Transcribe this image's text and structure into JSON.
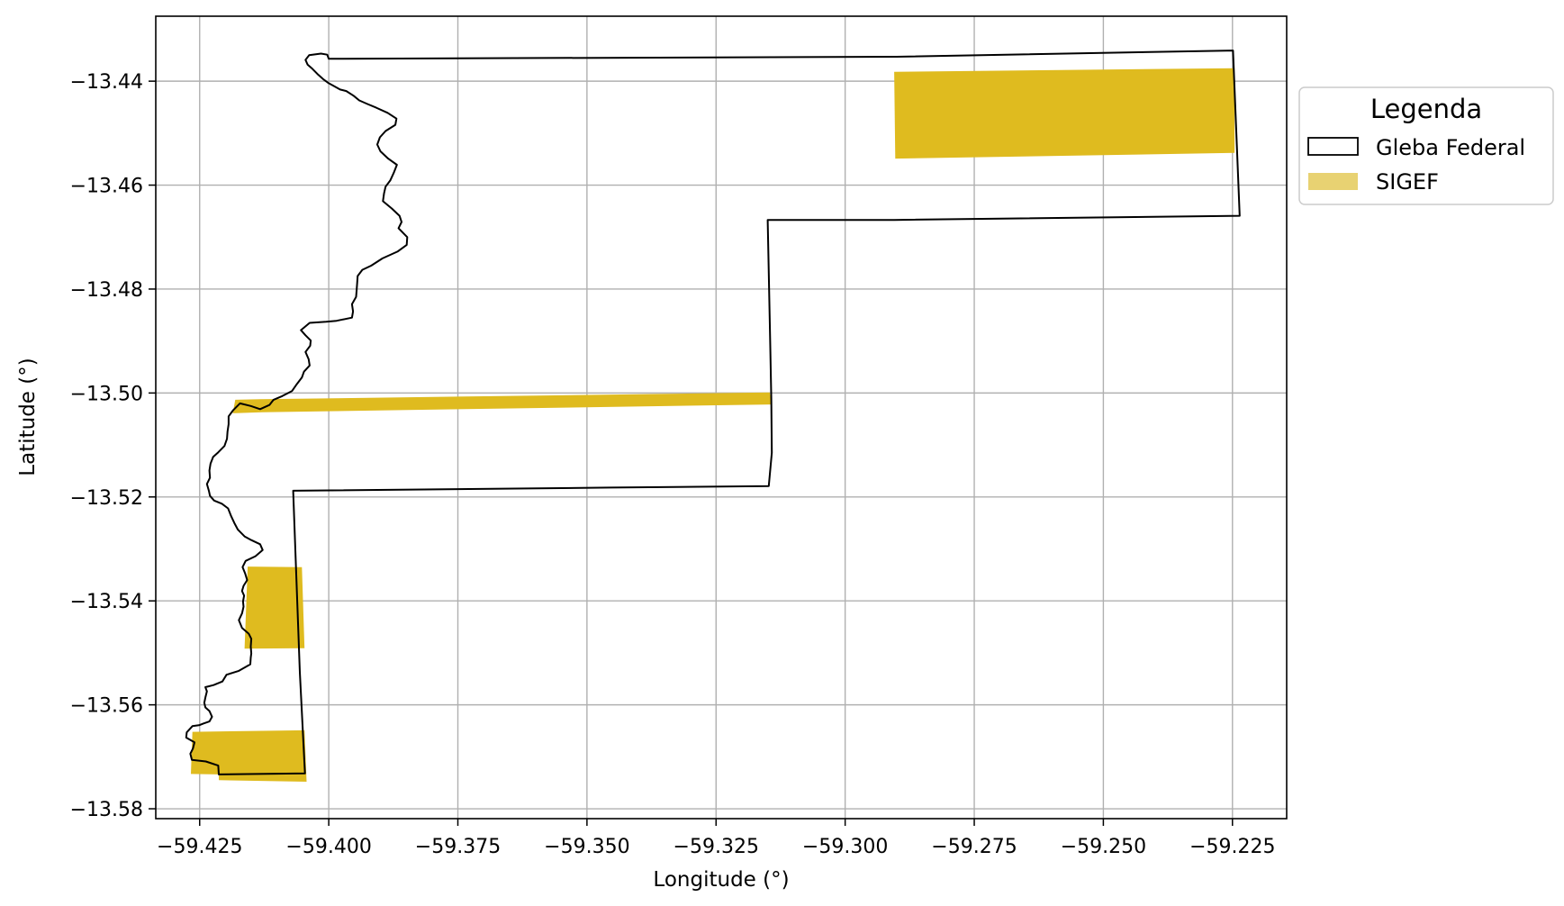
{
  "chart_data": {
    "type": "map",
    "xlabel": "Longitude (°)",
    "ylabel": "Latitude (°)",
    "xlim": [
      -59.4335,
      -59.2145
    ],
    "ylim": [
      -13.5819,
      -13.4275
    ],
    "xticks": [
      -59.425,
      -59.4,
      -59.375,
      -59.35,
      -59.325,
      -59.3,
      -59.275,
      -59.25,
      -59.225
    ],
    "xtick_labels": [
      "−59.425",
      "−59.400",
      "−59.375",
      "−59.350",
      "−59.325",
      "−59.300",
      "−59.275",
      "−59.250",
      "−59.225"
    ],
    "yticks": [
      -13.44,
      -13.46,
      -13.48,
      -13.5,
      -13.52,
      -13.54,
      -13.56,
      -13.58
    ],
    "ytick_labels": [
      "−13.44",
      "−13.46",
      "−13.48",
      "−13.50",
      "−13.52",
      "−13.54",
      "−13.56",
      "−13.58"
    ],
    "grid": true,
    "legend": {
      "title": "Legenda",
      "position": "outside-upper-right",
      "entries": [
        {
          "label": "Gleba Federal",
          "style": "outline",
          "edge_color": "#000000",
          "face_color": "#ffffff"
        },
        {
          "label": "SIGEF",
          "style": "fill",
          "face_color": "#e8d272"
        }
      ]
    },
    "colors": {
      "gleba_edge": "#000000",
      "sigef_fill": "#dfbb1f",
      "grid": "#b0b0b0"
    },
    "layers": [
      {
        "name": "Gleba Federal",
        "kind": "outline",
        "coordinates": [
          [
            -59.4,
            -13.4357
          ],
          [
            -59.29,
            -13.4353
          ],
          [
            -59.2249,
            -13.4341
          ],
          [
            -59.2236,
            -13.4659
          ],
          [
            -59.2905,
            -13.4667
          ],
          [
            -59.315,
            -13.4667
          ],
          [
            -59.3145,
            -13.4912
          ],
          [
            -59.3143,
            -13.5011
          ],
          [
            -59.3142,
            -13.5115
          ],
          [
            -59.3148,
            -13.5179
          ],
          [
            -59.3455,
            -13.5182
          ],
          [
            -59.4069,
            -13.5188
          ],
          [
            -59.4056,
            -13.5537
          ],
          [
            -59.4046,
            -13.5732
          ],
          [
            -59.4213,
            -13.5734
          ],
          [
            -59.4214,
            -13.5717
          ],
          [
            -59.4238,
            -13.5709
          ],
          [
            -59.4265,
            -13.5706
          ],
          [
            -59.4268,
            -13.5694
          ],
          [
            -59.4263,
            -13.5684
          ],
          [
            -59.426,
            -13.5672
          ],
          [
            -59.4276,
            -13.5663
          ],
          [
            -59.4275,
            -13.5653
          ],
          [
            -59.4264,
            -13.5641
          ],
          [
            -59.425,
            -13.5639
          ],
          [
            -59.4243,
            -13.5636
          ],
          [
            -59.4231,
            -13.5632
          ],
          [
            -59.4226,
            -13.5623
          ],
          [
            -59.4231,
            -13.5612
          ],
          [
            -59.4239,
            -13.5605
          ],
          [
            -59.4241,
            -13.5596
          ],
          [
            -59.4239,
            -13.5586
          ],
          [
            -59.4236,
            -13.5574
          ],
          [
            -59.4239,
            -13.5566
          ],
          [
            -59.4223,
            -13.5562
          ],
          [
            -59.4206,
            -13.5555
          ],
          [
            -59.4198,
            -13.5542
          ],
          [
            -59.4175,
            -13.5535
          ],
          [
            -59.4152,
            -13.5522
          ],
          [
            -59.4151,
            -13.5509
          ],
          [
            -59.415,
            -13.5501
          ],
          [
            -59.4151,
            -13.5488
          ],
          [
            -59.415,
            -13.5473
          ],
          [
            -59.4155,
            -13.5463
          ],
          [
            -59.4168,
            -13.5452
          ],
          [
            -59.4174,
            -13.5437
          ],
          [
            -59.4168,
            -13.5424
          ],
          [
            -59.4165,
            -13.5411
          ],
          [
            -59.4166,
            -13.5401
          ],
          [
            -59.4164,
            -13.539
          ],
          [
            -59.4168,
            -13.5381
          ],
          [
            -59.4165,
            -13.5371
          ],
          [
            -59.4158,
            -13.536
          ],
          [
            -59.4162,
            -13.5347
          ],
          [
            -59.4167,
            -13.5335
          ],
          [
            -59.4161,
            -13.5323
          ],
          [
            -59.4142,
            -13.5314
          ],
          [
            -59.4128,
            -13.5302
          ],
          [
            -59.4133,
            -13.5291
          ],
          [
            -59.415,
            -13.5283
          ],
          [
            -59.4163,
            -13.5276
          ],
          [
            -59.4176,
            -13.5263
          ],
          [
            -59.4183,
            -13.525
          ],
          [
            -59.4189,
            -13.5237
          ],
          [
            -59.4195,
            -13.5222
          ],
          [
            -59.4207,
            -13.5213
          ],
          [
            -59.4222,
            -13.5207
          ],
          [
            -59.423,
            -13.5198
          ],
          [
            -59.4232,
            -13.5189
          ],
          [
            -59.4236,
            -13.5175
          ],
          [
            -59.423,
            -13.5163
          ],
          [
            -59.4231,
            -13.5149
          ],
          [
            -59.4229,
            -13.5136
          ],
          [
            -59.4224,
            -13.5123
          ],
          [
            -59.4214,
            -13.5114
          ],
          [
            -59.4202,
            -13.5102
          ],
          [
            -59.4197,
            -13.5088
          ],
          [
            -59.4196,
            -13.5074
          ],
          [
            -59.4194,
            -13.506
          ],
          [
            -59.4194,
            -13.5045
          ],
          [
            -59.4185,
            -13.5033
          ],
          [
            -59.4172,
            -13.502
          ],
          [
            -59.4151,
            -13.5025
          ],
          [
            -59.4133,
            -13.5031
          ],
          [
            -59.4115,
            -13.5023
          ],
          [
            -59.4107,
            -13.5013
          ],
          [
            -59.409,
            -13.5006
          ],
          [
            -59.4071,
            -13.4996
          ],
          [
            -59.4062,
            -13.4983
          ],
          [
            -59.4052,
            -13.497
          ],
          [
            -59.4048,
            -13.4959
          ],
          [
            -59.4037,
            -13.4947
          ],
          [
            -59.4039,
            -13.4935
          ],
          [
            -59.4045,
            -13.4921
          ],
          [
            -59.4036,
            -13.4909
          ],
          [
            -59.4035,
            -13.4899
          ],
          [
            -59.4045,
            -13.4889
          ],
          [
            -59.4054,
            -13.4879
          ],
          [
            -59.4037,
            -13.4865
          ],
          [
            -59.4005,
            -13.4863
          ],
          [
            -59.3985,
            -13.4861
          ],
          [
            -59.3955,
            -13.4855
          ],
          [
            -59.3953,
            -13.4843
          ],
          [
            -59.3955,
            -13.4829
          ],
          [
            -59.3947,
            -13.4815
          ],
          [
            -59.3946,
            -13.4802
          ],
          [
            -59.3945,
            -13.4788
          ],
          [
            -59.3944,
            -13.4775
          ],
          [
            -59.3935,
            -13.4763
          ],
          [
            -59.3918,
            -13.4755
          ],
          [
            -59.3896,
            -13.4741
          ],
          [
            -59.3867,
            -13.4728
          ],
          [
            -59.3849,
            -13.4715
          ],
          [
            -59.3848,
            -13.47
          ],
          [
            -59.3865,
            -13.4683
          ],
          [
            -59.3859,
            -13.4671
          ],
          [
            -59.3863,
            -13.4659
          ],
          [
            -59.3878,
            -13.4645
          ],
          [
            -59.3895,
            -13.4631
          ],
          [
            -59.3893,
            -13.4616
          ],
          [
            -59.389,
            -13.4603
          ],
          [
            -59.3881,
            -13.4591
          ],
          [
            -59.3874,
            -13.4576
          ],
          [
            -59.3868,
            -13.4561
          ],
          [
            -59.3885,
            -13.4549
          ],
          [
            -59.39,
            -13.4535
          ],
          [
            -59.3906,
            -13.4522
          ],
          [
            -59.3901,
            -13.4508
          ],
          [
            -59.389,
            -13.4496
          ],
          [
            -59.3871,
            -13.4484
          ],
          [
            -59.3869,
            -13.4472
          ],
          [
            -59.3886,
            -13.4461
          ],
          [
            -59.3908,
            -13.4451
          ],
          [
            -59.3925,
            -13.4444
          ],
          [
            -59.3941,
            -13.4437
          ],
          [
            -59.3952,
            -13.4428
          ],
          [
            -59.3966,
            -13.4419
          ],
          [
            -59.3978,
            -13.4416
          ],
          [
            -59.3991,
            -13.4409
          ],
          [
            -59.4,
            -13.4404
          ],
          [
            -59.4011,
            -13.4396
          ],
          [
            -59.4022,
            -13.4386
          ],
          [
            -59.4032,
            -13.4376
          ],
          [
            -59.4041,
            -13.4368
          ],
          [
            -59.4045,
            -13.4359
          ],
          [
            -59.4038,
            -13.435
          ],
          [
            -59.4015,
            -13.4347
          ],
          [
            -59.4003,
            -13.4349
          ],
          [
            -59.4,
            -13.4357
          ]
        ]
      },
      {
        "name": "SIGEF",
        "kind": "fill",
        "polygons": [
          [
            [
              -59.2905,
              -13.4382
            ],
            [
              -59.2246,
              -13.4375
            ],
            [
              -59.2246,
              -13.4538
            ],
            [
              -59.2903,
              -13.4549
            ]
          ],
          [
            [
              -59.4181,
              -13.5013
            ],
            [
              -59.4133,
              -13.5012
            ],
            [
              -59.3146,
              -13.4999
            ],
            [
              -59.3142,
              -13.5022
            ],
            [
              -59.4129,
              -13.5037
            ],
            [
              -59.4186,
              -13.5039
            ]
          ],
          [
            [
              -59.4157,
              -13.5334
            ],
            [
              -59.4052,
              -13.5335
            ],
            [
              -59.4047,
              -13.5491
            ],
            [
              -59.4163,
              -13.5492
            ]
          ],
          [
            [
              -59.4264,
              -13.5652
            ],
            [
              -59.4047,
              -13.5649
            ],
            [
              -59.4043,
              -13.5748
            ],
            [
              -59.4213,
              -13.5745
            ],
            [
              -59.4213,
              -13.5734
            ],
            [
              -59.4267,
              -13.5733
            ]
          ]
        ]
      }
    ]
  }
}
